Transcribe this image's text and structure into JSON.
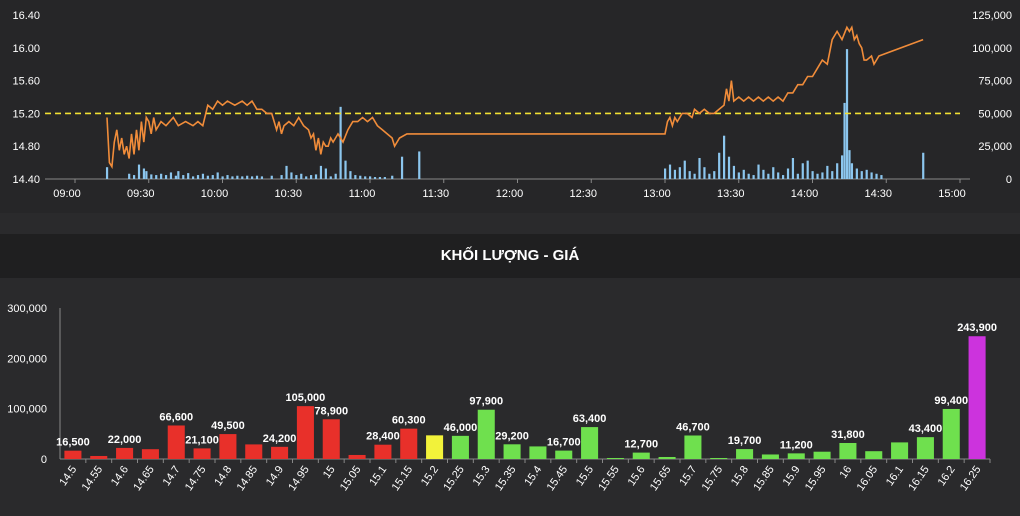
{
  "section_title": "KHỐI LƯỢNG - GIÁ",
  "colors": {
    "price_line": "#f08c3a",
    "ref_line": "#f2e032",
    "volume_bar": "#8cc6ee",
    "down": "#e8302a",
    "ref": "#f2f23a",
    "up": "#6fe04e",
    "ceiling": "#cc33dd",
    "axis_text": "#ffffff",
    "grid": "#555555"
  },
  "chart_data": [
    {
      "type": "line",
      "title": "",
      "x_ticks": [
        "09:00",
        "09:30",
        "10:00",
        "10:30",
        "11:00",
        "11:30",
        "12:00",
        "12:30",
        "13:00",
        "13:30",
        "14:00",
        "14:30",
        "15:00"
      ],
      "y_left_ticks": [
        "14.40",
        "14.80",
        "15.20",
        "15.60",
        "16.00",
        "16.40"
      ],
      "y_right_ticks": [
        "0",
        "25,000",
        "50,000",
        "75,000",
        "100,000",
        "125,000"
      ],
      "ylim_left": [
        14.4,
        16.4
      ],
      "ylim_right": [
        0,
        125000
      ],
      "reference_price": 15.2,
      "price_series": [
        [
          "09:13",
          15.15
        ],
        [
          "09:14",
          14.6
        ],
        [
          "09:15",
          14.55
        ],
        [
          "09:16",
          14.85
        ],
        [
          "09:17",
          15.0
        ],
        [
          "09:18",
          14.75
        ],
        [
          "09:19",
          14.9
        ],
        [
          "09:20",
          14.7
        ],
        [
          "09:21",
          14.8
        ],
        [
          "09:22",
          14.65
        ],
        [
          "09:23",
          14.95
        ],
        [
          "09:24",
          14.7
        ],
        [
          "09:25",
          15.0
        ],
        [
          "09:26",
          14.75
        ],
        [
          "09:27",
          15.1
        ],
        [
          "09:28",
          14.85
        ],
        [
          "09:29",
          15.15
        ],
        [
          "09:30",
          15.1
        ],
        [
          "09:31",
          14.95
        ],
        [
          "09:32",
          15.15
        ],
        [
          "09:33",
          15.0
        ],
        [
          "09:35",
          15.1
        ],
        [
          "09:37",
          15.05
        ],
        [
          "09:40",
          15.15
        ],
        [
          "09:42",
          15.05
        ],
        [
          "09:45",
          15.1
        ],
        [
          "09:48",
          15.05
        ],
        [
          "09:50",
          15.1
        ],
        [
          "09:52",
          15.05
        ],
        [
          "09:54",
          15.3
        ],
        [
          "09:56",
          15.25
        ],
        [
          "09:58",
          15.35
        ],
        [
          "10:00",
          15.3
        ],
        [
          "10:02",
          15.35
        ],
        [
          "10:05",
          15.3
        ],
        [
          "10:08",
          15.35
        ],
        [
          "10:10",
          15.3
        ],
        [
          "10:12",
          15.35
        ],
        [
          "10:14",
          15.25
        ],
        [
          "10:16",
          15.25
        ],
        [
          "10:18",
          15.2
        ],
        [
          "10:20",
          15.2
        ],
        [
          "10:22",
          15.0
        ],
        [
          "10:23",
          15.1
        ],
        [
          "10:24",
          14.95
        ],
        [
          "10:25",
          15.05
        ],
        [
          "10:27",
          15.1
        ],
        [
          "10:29",
          15.05
        ],
        [
          "10:31",
          15.15
        ],
        [
          "10:33",
          15.05
        ],
        [
          "10:35",
          15.0
        ],
        [
          "10:36",
          14.9
        ],
        [
          "10:37",
          14.95
        ],
        [
          "10:38",
          14.75
        ],
        [
          "10:39",
          14.9
        ],
        [
          "10:40",
          14.7
        ],
        [
          "10:41",
          14.85
        ],
        [
          "10:42",
          14.8
        ],
        [
          "10:43",
          14.8
        ],
        [
          "10:44",
          14.9
        ],
        [
          "10:45",
          14.85
        ],
        [
          "10:47",
          14.95
        ],
        [
          "10:49",
          14.85
        ],
        [
          "10:51",
          15.0
        ],
        [
          "10:53",
          15.1
        ],
        [
          "10:55",
          15.1
        ],
        [
          "10:57",
          15.15
        ],
        [
          "10:59",
          15.1
        ],
        [
          "11:01",
          15.15
        ],
        [
          "11:03",
          15.05
        ],
        [
          "11:05",
          15.0
        ],
        [
          "11:07",
          14.95
        ],
        [
          "11:09",
          14.9
        ],
        [
          "11:10",
          14.8
        ],
        [
          "11:12",
          14.9
        ],
        [
          "11:15",
          14.95
        ],
        [
          "11:30",
          14.95
        ],
        [
          "12:00",
          14.95
        ],
        [
          "12:30",
          14.95
        ],
        [
          "13:00",
          14.95
        ],
        [
          "13:01",
          15.1
        ],
        [
          "13:02",
          15.15
        ],
        [
          "13:03",
          15.05
        ],
        [
          "13:04",
          15.15
        ],
        [
          "13:05",
          15.1
        ],
        [
          "13:07",
          15.2
        ],
        [
          "13:09",
          15.2
        ],
        [
          "13:11",
          15.15
        ],
        [
          "13:12",
          15.25
        ],
        [
          "13:14",
          15.2
        ],
        [
          "13:16",
          15.25
        ],
        [
          "13:18",
          15.2
        ],
        [
          "13:20",
          15.2
        ],
        [
          "13:22",
          15.25
        ],
        [
          "13:24",
          15.3
        ],
        [
          "13:25",
          15.5
        ],
        [
          "13:26",
          15.35
        ],
        [
          "13:27",
          15.6
        ],
        [
          "13:28",
          15.35
        ],
        [
          "13:30",
          15.4
        ],
        [
          "13:32",
          15.35
        ],
        [
          "13:34",
          15.4
        ],
        [
          "13:36",
          15.35
        ],
        [
          "13:38",
          15.4
        ],
        [
          "13:40",
          15.35
        ],
        [
          "13:42",
          15.4
        ],
        [
          "13:44",
          15.35
        ],
        [
          "13:46",
          15.4
        ],
        [
          "13:48",
          15.35
        ],
        [
          "13:50",
          15.45
        ],
        [
          "13:52",
          15.45
        ],
        [
          "13:54",
          15.55
        ],
        [
          "13:56",
          15.55
        ],
        [
          "13:58",
          15.65
        ],
        [
          "14:00",
          15.65
        ],
        [
          "14:02",
          15.75
        ],
        [
          "14:04",
          15.85
        ],
        [
          "14:06",
          15.8
        ],
        [
          "14:08",
          16.1
        ],
        [
          "14:10",
          16.2
        ],
        [
          "14:12",
          16.1
        ],
        [
          "14:14",
          16.25
        ],
        [
          "14:15",
          16.2
        ],
        [
          "14:16",
          16.25
        ],
        [
          "14:17",
          16.1
        ],
        [
          "14:18",
          16.15
        ],
        [
          "14:19",
          16.05
        ],
        [
          "14:20",
          16.0
        ],
        [
          "14:21",
          15.85
        ],
        [
          "14:22",
          15.85
        ],
        [
          "14:24",
          15.9
        ],
        [
          "14:25",
          15.8
        ],
        [
          "14:27",
          15.9
        ],
        [
          "14:45",
          16.1
        ]
      ],
      "volume_series": [
        [
          "09:13",
          9000
        ],
        [
          "09:22",
          4000
        ],
        [
          "09:24",
          3000
        ],
        [
          "09:26",
          11000
        ],
        [
          "09:28",
          8000
        ],
        [
          "09:29",
          6000
        ],
        [
          "09:31",
          3500
        ],
        [
          "09:33",
          3000
        ],
        [
          "09:35",
          4000
        ],
        [
          "09:37",
          3000
        ],
        [
          "09:39",
          5000
        ],
        [
          "09:41",
          2500
        ],
        [
          "09:42",
          6000
        ],
        [
          "09:44",
          3000
        ],
        [
          "09:46",
          4500
        ],
        [
          "09:48",
          2000
        ],
        [
          "09:50",
          3000
        ],
        [
          "09:52",
          4000
        ],
        [
          "09:54",
          2500
        ],
        [
          "09:56",
          3000
        ],
        [
          "09:58",
          5000
        ],
        [
          "10:00",
          2000
        ],
        [
          "10:02",
          3000
        ],
        [
          "10:04",
          2000
        ],
        [
          "10:06",
          2500
        ],
        [
          "10:08",
          2000
        ],
        [
          "10:10",
          2500
        ],
        [
          "10:12",
          2000
        ],
        [
          "10:14",
          2500
        ],
        [
          "10:16",
          2000
        ],
        [
          "10:20",
          2500
        ],
        [
          "10:24",
          3000
        ],
        [
          "10:26",
          10000
        ],
        [
          "10:28",
          5000
        ],
        [
          "10:30",
          3000
        ],
        [
          "10:32",
          4000
        ],
        [
          "10:34",
          2000
        ],
        [
          "10:36",
          3000
        ],
        [
          "10:38",
          3500
        ],
        [
          "10:40",
          10000
        ],
        [
          "10:42",
          8000
        ],
        [
          "10:44",
          2000
        ],
        [
          "10:46",
          4000
        ],
        [
          "10:48",
          55000
        ],
        [
          "10:50",
          14000
        ],
        [
          "10:52",
          6000
        ],
        [
          "10:54",
          3000
        ],
        [
          "10:56",
          2500
        ],
        [
          "10:58",
          2000
        ],
        [
          "11:00",
          2000
        ],
        [
          "11:02",
          1500
        ],
        [
          "11:04",
          1500
        ],
        [
          "11:06",
          1500
        ],
        [
          "11:09",
          2500
        ],
        [
          "11:13",
          17000
        ],
        [
          "11:20",
          21000
        ],
        [
          "13:00",
          8000
        ],
        [
          "13:02",
          11000
        ],
        [
          "13:04",
          7000
        ],
        [
          "13:06",
          9000
        ],
        [
          "13:08",
          14000
        ],
        [
          "13:10",
          6000
        ],
        [
          "13:12",
          4000
        ],
        [
          "13:14",
          16000
        ],
        [
          "13:16",
          9000
        ],
        [
          "13:18",
          4000
        ],
        [
          "13:20",
          6000
        ],
        [
          "13:22",
          20000
        ],
        [
          "13:24",
          33000
        ],
        [
          "13:26",
          17000
        ],
        [
          "13:28",
          10000
        ],
        [
          "13:30",
          5000
        ],
        [
          "13:32",
          7000
        ],
        [
          "13:34",
          4000
        ],
        [
          "13:36",
          3000
        ],
        [
          "13:38",
          11000
        ],
        [
          "13:40",
          7000
        ],
        [
          "13:42",
          4000
        ],
        [
          "13:44",
          9000
        ],
        [
          "13:46",
          5000
        ],
        [
          "13:48",
          3000
        ],
        [
          "13:50",
          8000
        ],
        [
          "13:52",
          16000
        ],
        [
          "13:54",
          4000
        ],
        [
          "13:56",
          12000
        ],
        [
          "13:58",
          14000
        ],
        [
          "14:00",
          6000
        ],
        [
          "14:02",
          4000
        ],
        [
          "14:04",
          5000
        ],
        [
          "14:06",
          10000
        ],
        [
          "14:08",
          6000
        ],
        [
          "14:10",
          12000
        ],
        [
          "14:12",
          18000
        ],
        [
          "14:13",
          58000
        ],
        [
          "14:14",
          99000
        ],
        [
          "14:15",
          22000
        ],
        [
          "14:16",
          12000
        ],
        [
          "14:18",
          8000
        ],
        [
          "14:20",
          6000
        ],
        [
          "14:22",
          7000
        ],
        [
          "14:24",
          5000
        ],
        [
          "14:26",
          4000
        ],
        [
          "14:28",
          3000
        ],
        [
          "14:45",
          20000
        ]
      ]
    },
    {
      "type": "bar",
      "title": "KHỐI LƯỢNG - GIÁ",
      "categories": [
        "14.5",
        "14.55",
        "14.6",
        "14.65",
        "14.7",
        "14.75",
        "14.8",
        "14.85",
        "14.9",
        "14.95",
        "15",
        "15.05",
        "15.1",
        "15.15",
        "15.2",
        "15.25",
        "15.3",
        "15.35",
        "15.4",
        "15.45",
        "15.5",
        "15.55",
        "15.6",
        "15.65",
        "15.7",
        "15.75",
        "15.8",
        "15.85",
        "15.9",
        "15.95",
        "16",
        "16.05",
        "16.1",
        "16.15",
        "16.2",
        "16.25"
      ],
      "values": [
        16500,
        6000,
        22000,
        19500,
        66600,
        21100,
        49500,
        29000,
        24200,
        105000,
        78900,
        8000,
        28400,
        60300,
        47000,
        46000,
        97900,
        29200,
        25000,
        16700,
        63400,
        2000,
        12700,
        4000,
        46700,
        2000,
        19700,
        9000,
        11200,
        14500,
        31800,
        15500,
        33000,
        43400,
        99400,
        243900
      ],
      "labels": [
        "16,500",
        "",
        "22,000",
        "",
        "66,600",
        "21,100",
        "49,500",
        "",
        "24,200",
        "105,000",
        "78,900",
        "",
        "28,400",
        "60,300",
        "",
        "46,000",
        "97,900",
        "29,200",
        "",
        "16,700",
        "63,400",
        "",
        "12,700",
        "",
        "46,700",
        "",
        "19,700",
        "",
        "11,200",
        "",
        "31,800",
        "",
        "",
        "43,400",
        "99,400",
        "243,900"
      ],
      "bar_colors": [
        "down",
        "down",
        "down",
        "down",
        "down",
        "down",
        "down",
        "down",
        "down",
        "down",
        "down",
        "down",
        "down",
        "down",
        "ref",
        "up",
        "up",
        "up",
        "up",
        "up",
        "up",
        "up",
        "up",
        "up",
        "up",
        "up",
        "up",
        "up",
        "up",
        "up",
        "up",
        "up",
        "up",
        "up",
        "up",
        "ceiling"
      ],
      "y_ticks": [
        "0",
        "100,000",
        "200,000",
        "300,000"
      ],
      "ylim": [
        0,
        300000
      ],
      "xlabel": "",
      "ylabel": ""
    }
  ]
}
